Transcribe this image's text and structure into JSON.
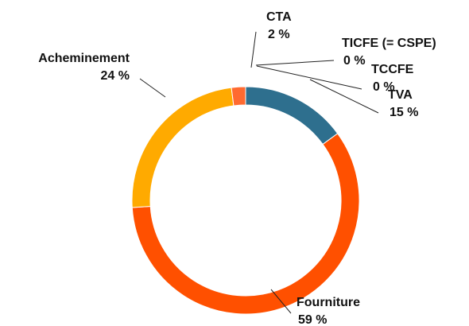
{
  "chart_data": {
    "type": "donut",
    "categories": [
      "TICFE (= CSPE)",
      "TCCFE",
      "TVA",
      "Fourniture",
      "Acheminement",
      "CTA"
    ],
    "values": [
      0,
      0,
      15,
      59,
      24,
      2
    ],
    "value_labels": [
      "0 %",
      "0 %",
      "15 %",
      "59 %",
      "24 %",
      "2 %"
    ],
    "colors": [
      "#7a9cb8",
      "#5b8db0",
      "#2e6f8e",
      "#ff5000",
      "#ffaa00",
      "#ff6a30"
    ]
  }
}
